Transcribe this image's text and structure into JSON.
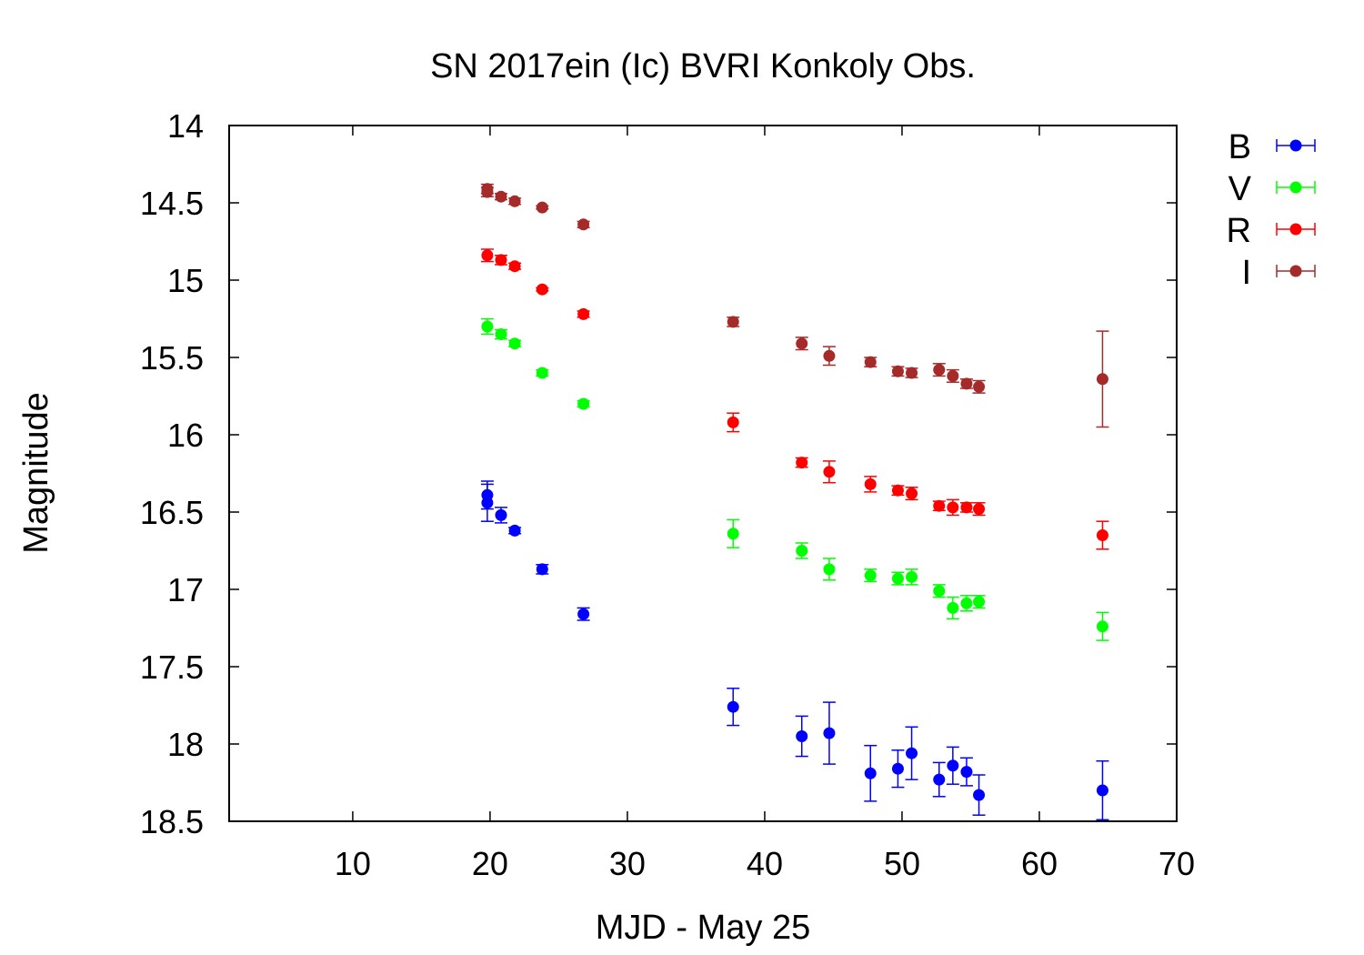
{
  "chart_data": {
    "type": "scatter",
    "title": "SN 2017ein (Ic) BVRI Konkoly Obs.",
    "xlabel": "MJD - May 25",
    "ylabel": "Magnitude",
    "xlim": [
      1,
      70
    ],
    "ylim": [
      14,
      18.5
    ],
    "y_inverted": true,
    "grid": false,
    "legend_position": "outside-right",
    "xticks": [
      10,
      20,
      30,
      40,
      50,
      60,
      70
    ],
    "yticks": [
      14,
      14.5,
      15,
      15.5,
      16,
      16.5,
      17,
      17.5,
      18,
      18.5
    ],
    "series": [
      {
        "name": "B",
        "color": "#0000ff",
        "points": [
          {
            "x": 19.8,
            "y": 16.39,
            "err": 0.09
          },
          {
            "x": 19.8,
            "y": 16.44,
            "err": 0.12
          },
          {
            "x": 20.8,
            "y": 16.52,
            "err": 0.05
          },
          {
            "x": 21.8,
            "y": 16.62,
            "err": 0.02
          },
          {
            "x": 23.8,
            "y": 16.87,
            "err": 0.03
          },
          {
            "x": 26.8,
            "y": 17.16,
            "err": 0.04
          },
          {
            "x": 37.7,
            "y": 17.76,
            "err": 0.12
          },
          {
            "x": 42.7,
            "y": 17.95,
            "err": 0.13
          },
          {
            "x": 44.7,
            "y": 17.93,
            "err": 0.2
          },
          {
            "x": 47.7,
            "y": 18.19,
            "err": 0.18
          },
          {
            "x": 49.7,
            "y": 18.16,
            "err": 0.12
          },
          {
            "x": 50.7,
            "y": 18.06,
            "err": 0.17
          },
          {
            "x": 52.7,
            "y": 18.23,
            "err": 0.11
          },
          {
            "x": 53.7,
            "y": 18.14,
            "err": 0.12
          },
          {
            "x": 54.7,
            "y": 18.18,
            "err": 0.09
          },
          {
            "x": 55.6,
            "y": 18.33,
            "err": 0.13
          },
          {
            "x": 64.6,
            "y": 18.3,
            "err": 0.19
          }
        ]
      },
      {
        "name": "V",
        "color": "#00ff00",
        "points": [
          {
            "x": 19.8,
            "y": 15.3,
            "err": 0.05
          },
          {
            "x": 20.8,
            "y": 15.35,
            "err": 0.03
          },
          {
            "x": 21.8,
            "y": 15.41,
            "err": 0.02
          },
          {
            "x": 23.8,
            "y": 15.6,
            "err": 0.02
          },
          {
            "x": 26.8,
            "y": 15.8,
            "err": 0.02
          },
          {
            "x": 37.7,
            "y": 16.64,
            "err": 0.09
          },
          {
            "x": 42.7,
            "y": 16.75,
            "err": 0.05
          },
          {
            "x": 44.7,
            "y": 16.87,
            "err": 0.07
          },
          {
            "x": 47.7,
            "y": 16.91,
            "err": 0.04
          },
          {
            "x": 49.7,
            "y": 16.93,
            "err": 0.04
          },
          {
            "x": 50.7,
            "y": 16.92,
            "err": 0.05
          },
          {
            "x": 52.7,
            "y": 17.01,
            "err": 0.04
          },
          {
            "x": 53.7,
            "y": 17.12,
            "err": 0.07
          },
          {
            "x": 54.7,
            "y": 17.09,
            "err": 0.05
          },
          {
            "x": 55.6,
            "y": 17.08,
            "err": 0.04
          },
          {
            "x": 64.6,
            "y": 17.24,
            "err": 0.09
          }
        ]
      },
      {
        "name": "R",
        "color": "#ff0000",
        "points": [
          {
            "x": 19.8,
            "y": 14.84,
            "err": 0.04
          },
          {
            "x": 20.8,
            "y": 14.87,
            "err": 0.03
          },
          {
            "x": 21.8,
            "y": 14.91,
            "err": 0.02
          },
          {
            "x": 23.8,
            "y": 15.06,
            "err": 0.01
          },
          {
            "x": 26.8,
            "y": 15.22,
            "err": 0.02
          },
          {
            "x": 37.7,
            "y": 15.92,
            "err": 0.06
          },
          {
            "x": 42.7,
            "y": 16.18,
            "err": 0.03
          },
          {
            "x": 44.7,
            "y": 16.24,
            "err": 0.07
          },
          {
            "x": 47.7,
            "y": 16.32,
            "err": 0.05
          },
          {
            "x": 49.7,
            "y": 16.36,
            "err": 0.03
          },
          {
            "x": 50.7,
            "y": 16.38,
            "err": 0.04
          },
          {
            "x": 52.7,
            "y": 16.46,
            "err": 0.03
          },
          {
            "x": 53.7,
            "y": 16.47,
            "err": 0.05
          },
          {
            "x": 54.7,
            "y": 16.47,
            "err": 0.03
          },
          {
            "x": 55.6,
            "y": 16.48,
            "err": 0.04
          },
          {
            "x": 64.6,
            "y": 16.65,
            "err": 0.09
          }
        ]
      },
      {
        "name": "I",
        "color": "#a52a2a",
        "points": [
          {
            "x": 19.8,
            "y": 14.41,
            "err": 0.03
          },
          {
            "x": 19.8,
            "y": 14.43,
            "err": 0.03
          },
          {
            "x": 20.8,
            "y": 14.46,
            "err": 0.02
          },
          {
            "x": 21.8,
            "y": 14.49,
            "err": 0.02
          },
          {
            "x": 23.8,
            "y": 14.53,
            "err": 0.01
          },
          {
            "x": 26.8,
            "y": 14.64,
            "err": 0.02
          },
          {
            "x": 37.7,
            "y": 15.27,
            "err": 0.03
          },
          {
            "x": 42.7,
            "y": 15.41,
            "err": 0.04
          },
          {
            "x": 44.7,
            "y": 15.49,
            "err": 0.06
          },
          {
            "x": 47.7,
            "y": 15.53,
            "err": 0.03
          },
          {
            "x": 49.7,
            "y": 15.59,
            "err": 0.03
          },
          {
            "x": 50.7,
            "y": 15.6,
            "err": 0.03
          },
          {
            "x": 52.7,
            "y": 15.58,
            "err": 0.04
          },
          {
            "x": 53.7,
            "y": 15.62,
            "err": 0.04
          },
          {
            "x": 54.7,
            "y": 15.67,
            "err": 0.03
          },
          {
            "x": 55.6,
            "y": 15.69,
            "err": 0.04
          },
          {
            "x": 64.6,
            "y": 15.64,
            "err": 0.31
          }
        ]
      }
    ]
  }
}
